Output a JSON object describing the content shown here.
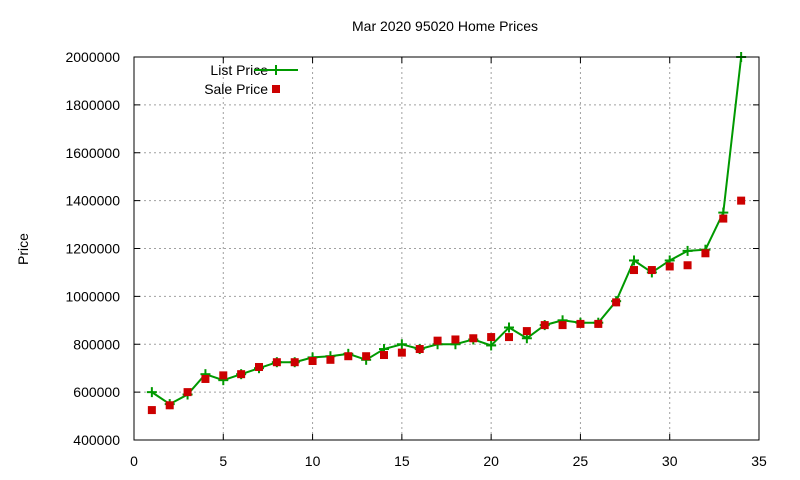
{
  "chart_data": {
    "type": "line",
    "title": "Mar 2020 95020 Home Prices",
    "xlabel": "",
    "ylabel": "Price",
    "xlim": [
      0,
      35
    ],
    "ylim": [
      400000,
      2000000
    ],
    "x_ticks": [
      0,
      5,
      10,
      15,
      20,
      25,
      30,
      35
    ],
    "y_ticks": [
      400000,
      600000,
      800000,
      1000000,
      1200000,
      1400000,
      1600000,
      1800000,
      2000000
    ],
    "grid": true,
    "legend_position": "top-left",
    "series": [
      {
        "name": "List Price",
        "style": "line-plus",
        "color": "#009900",
        "x": [
          1,
          2,
          3,
          4,
          5,
          6,
          7,
          8,
          9,
          10,
          11,
          12,
          13,
          14,
          15,
          16,
          17,
          18,
          19,
          20,
          21,
          22,
          23,
          24,
          25,
          26,
          27,
          28,
          29,
          30,
          31,
          32,
          33,
          34
        ],
        "values": [
          600000,
          550000,
          590000,
          675000,
          650000,
          675000,
          700000,
          725000,
          725000,
          745000,
          750000,
          760000,
          735000,
          780000,
          800000,
          780000,
          800000,
          800000,
          820000,
          795000,
          870000,
          825000,
          880000,
          900000,
          890000,
          890000,
          980000,
          1150000,
          1100000,
          1150000,
          1190000,
          1195000,
          1350000,
          2000000
        ]
      },
      {
        "name": "Sale Price",
        "style": "square",
        "color": "#cc0000",
        "x": [
          1,
          2,
          3,
          4,
          5,
          6,
          7,
          8,
          9,
          10,
          11,
          12,
          13,
          14,
          15,
          16,
          17,
          18,
          19,
          20,
          21,
          22,
          23,
          24,
          25,
          26,
          27,
          28,
          29,
          30,
          31,
          32,
          33,
          34
        ],
        "values": [
          525000,
          545000,
          600000,
          655000,
          670000,
          675000,
          705000,
          725000,
          725000,
          730000,
          735000,
          750000,
          750000,
          755000,
          765000,
          780000,
          815000,
          820000,
          825000,
          830000,
          830000,
          855000,
          880000,
          880000,
          885000,
          885000,
          975000,
          1110000,
          1110000,
          1125000,
          1130000,
          1180000,
          1325000,
          1400000
        ]
      }
    ]
  }
}
